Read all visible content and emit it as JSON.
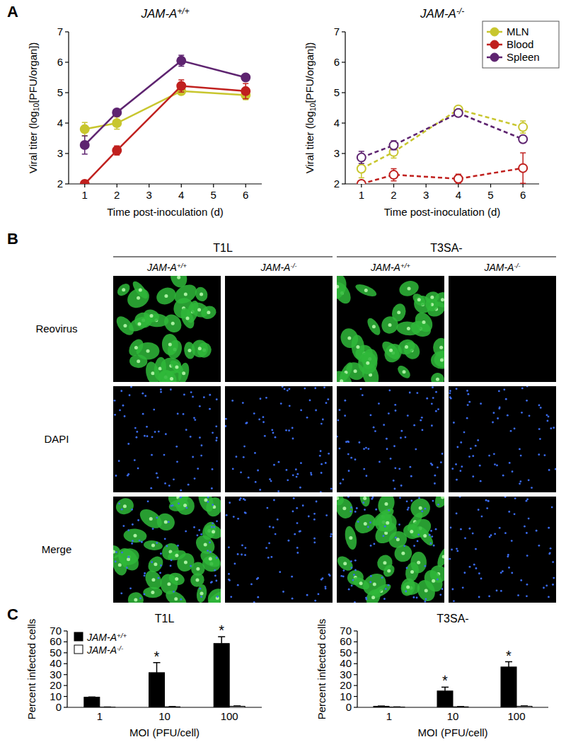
{
  "panel_labels": [
    "A",
    "B",
    "C"
  ],
  "chart_data": [
    {
      "type": "line",
      "title": "JAM-A+/+",
      "xlabel": "Time post-inoculation (d)",
      "ylabel": "Viral titer (log10[PFU/organ])",
      "x": [
        1,
        2,
        4,
        6
      ],
      "xlim": [
        0.5,
        6.5
      ],
      "xticks": [
        1,
        2,
        3,
        4,
        5,
        6
      ],
      "ylim": [
        2,
        7
      ],
      "yticks": [
        2,
        3,
        4,
        5,
        6,
        7
      ],
      "series": [
        {
          "name": "MLN",
          "color": "#c8c62e",
          "marker": "circle",
          "line_style": "solid",
          "values": [
            3.8,
            4.0,
            5.05,
            4.92
          ],
          "errors": [
            0.22,
            0.2,
            0.1,
            0.15
          ]
        },
        {
          "name": "Blood",
          "color": "#c0201e",
          "marker": "circle",
          "line_style": "solid",
          "values": [
            2.0,
            3.1,
            5.22,
            5.05
          ],
          "errors": [
            0.03,
            0.15,
            0.2,
            0.25
          ]
        },
        {
          "name": "Spleen",
          "color": "#5e2470",
          "marker": "circle",
          "line_style": "solid",
          "values": [
            3.28,
            4.35,
            6.05,
            5.5
          ],
          "errors": [
            0.3,
            0.05,
            0.18,
            0.1
          ]
        }
      ]
    },
    {
      "type": "line",
      "title": "JAM-A-/-",
      "xlabel": "Time post-inoculation (d)",
      "ylabel": "Viral titer (log10[PFU/organ])",
      "x": [
        1,
        2,
        4,
        6
      ],
      "xlim": [
        0.5,
        6.5
      ],
      "xticks": [
        1,
        2,
        3,
        4,
        5,
        6
      ],
      "ylim": [
        2,
        7
      ],
      "yticks": [
        2,
        3,
        4,
        5,
        6,
        7
      ],
      "legend": "top-right",
      "series": [
        {
          "name": "MLN",
          "color": "#c8c62e",
          "marker": "open-circle",
          "line_style": "dashed",
          "values": [
            2.5,
            3.05,
            4.45,
            3.87
          ],
          "errors": [
            0.3,
            0.2,
            0.05,
            0.2
          ]
        },
        {
          "name": "Blood",
          "color": "#c0201e",
          "marker": "open-circle",
          "line_style": "dashed",
          "values": [
            2.0,
            2.3,
            2.17,
            2.52
          ],
          "errors": [
            0.05,
            0.2,
            0.15,
            0.5
          ]
        },
        {
          "name": "Spleen",
          "color": "#5e2470",
          "marker": "open-circle",
          "line_style": "dashed",
          "values": [
            2.87,
            3.27,
            4.33,
            3.47
          ],
          "errors": [
            0.2,
            0.15,
            0.05,
            0.1
          ]
        }
      ]
    },
    {
      "type": "bar",
      "title": "T1L",
      "xlabel": "MOI (PFU/cell)",
      "ylabel": "Percent infected cells",
      "categories": [
        "1",
        "10",
        "100"
      ],
      "ylim": [
        0,
        70
      ],
      "yticks": [
        0,
        10,
        20,
        30,
        40,
        50,
        60,
        70
      ],
      "legend": "top-left",
      "series": [
        {
          "name": "JAM-A+/+",
          "color": "#000000",
          "values": [
            9.3,
            31.8,
            58.5
          ],
          "errors": [
            0.2,
            9.2,
            6.2
          ]
        },
        {
          "name": "JAM-A-/-",
          "color": "#ffffff",
          "values": [
            0.2,
            0.5,
            1.0
          ],
          "errors": [
            0.1,
            0.2,
            0.3
          ]
        }
      ],
      "annotations": [
        {
          "text": "*",
          "series": 0,
          "index": 1
        },
        {
          "text": "*",
          "series": 0,
          "index": 2
        }
      ]
    },
    {
      "type": "bar",
      "title": "T3SA-",
      "xlabel": "MOI (PFU/cell)",
      "ylabel": "Percent infected cells",
      "categories": [
        "1",
        "10",
        "100"
      ],
      "ylim": [
        0,
        70
      ],
      "yticks": [
        0,
        10,
        20,
        30,
        40,
        50,
        60,
        70
      ],
      "series": [
        {
          "name": "JAM-A+/+",
          "color": "#000000",
          "values": [
            1.0,
            15.0,
            37.0
          ],
          "errors": [
            0.2,
            3.5,
            4.8
          ]
        },
        {
          "name": "JAM-A-/-",
          "color": "#ffffff",
          "values": [
            0.3,
            0.5,
            1.0
          ],
          "errors": [
            0.1,
            0.2,
            0.3
          ]
        }
      ],
      "annotations": [
        {
          "text": "*",
          "series": 0,
          "index": 1
        },
        {
          "text": "*",
          "series": 0,
          "index": 2
        }
      ]
    }
  ],
  "image_grid": {
    "groups": [
      {
        "title": "T1L",
        "columns": [
          "JAM-A+/+",
          "JAM-A-/-"
        ]
      },
      {
        "title": "T3SA-",
        "columns": [
          "JAM-A+/+",
          "JAM-A-/-"
        ]
      }
    ],
    "rows": [
      "Reovirus",
      "DAPI",
      "Merge"
    ]
  }
}
